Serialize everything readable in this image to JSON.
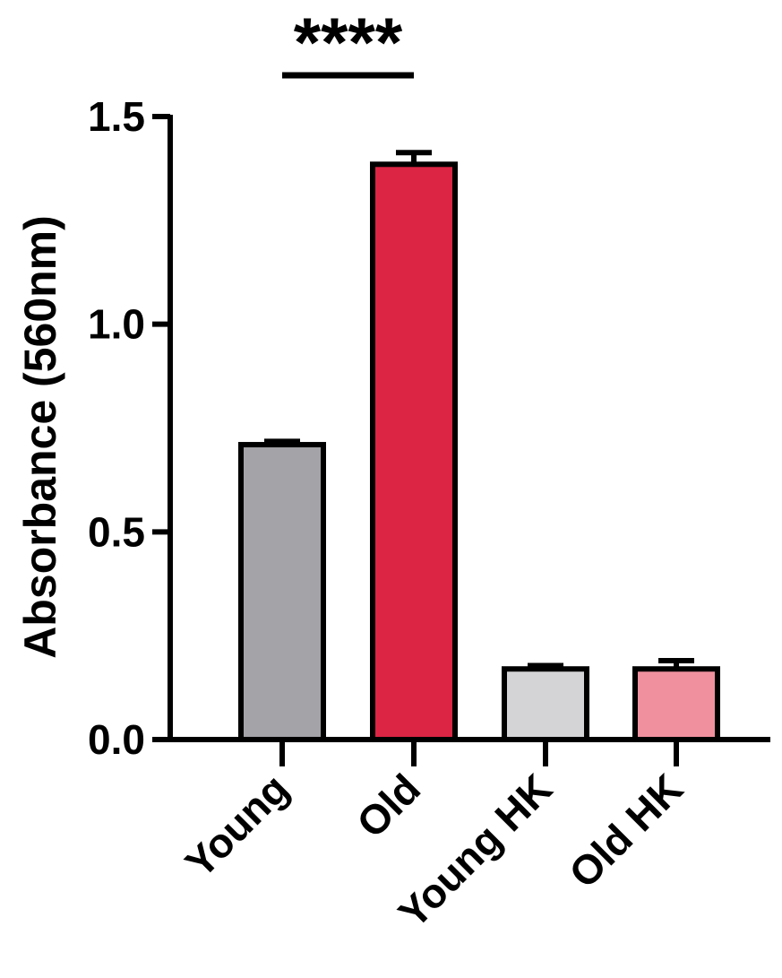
{
  "chart_data": {
    "type": "bar",
    "ylabel": "Absorbance (560nm)",
    "xlabel": "",
    "ylim": [
      0,
      1.5
    ],
    "yticks": [
      0.0,
      0.5,
      1.0,
      1.5
    ],
    "ytick_labels": [
      "0.0",
      "0.5",
      "1.0",
      "1.5"
    ],
    "grid": false,
    "categories": [
      "Young",
      "Old",
      "Young HK",
      "Old HK"
    ],
    "values": [
      0.71,
      1.385,
      0.17,
      0.17
    ],
    "errors": [
      0.008,
      0.028,
      0.008,
      0.02
    ],
    "colors": [
      "#a3a3a8",
      "#dc2544",
      "#d4d4d6",
      "#f0909e"
    ],
    "significance": [
      {
        "from": "Young",
        "to": "Old",
        "label": "****"
      }
    ]
  }
}
